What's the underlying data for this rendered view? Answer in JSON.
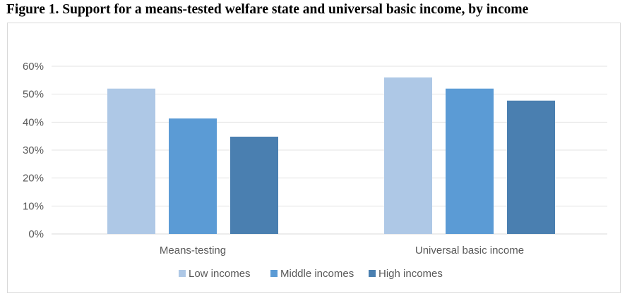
{
  "title": "Figure 1. Support for a means-tested welfare state and universal basic income, by income",
  "chart_data": {
    "type": "bar",
    "categories": [
      "Means-testing",
      "Universal basic income"
    ],
    "series": [
      {
        "name": "Low incomes",
        "values": [
          52,
          56
        ],
        "color": "#aec8e6"
      },
      {
        "name": "Middle incomes",
        "values": [
          41.3,
          52
        ],
        "color": "#5b9bd5"
      },
      {
        "name": "High incomes",
        "values": [
          34.8,
          47.7
        ],
        "color": "#4a7fb0"
      }
    ],
    "yticks": [
      "0%",
      "10%",
      "20%",
      "30%",
      "40%",
      "50%",
      "60%"
    ],
    "ylim": [
      0,
      60
    ],
    "grid": true,
    "legend": "bottom"
  }
}
